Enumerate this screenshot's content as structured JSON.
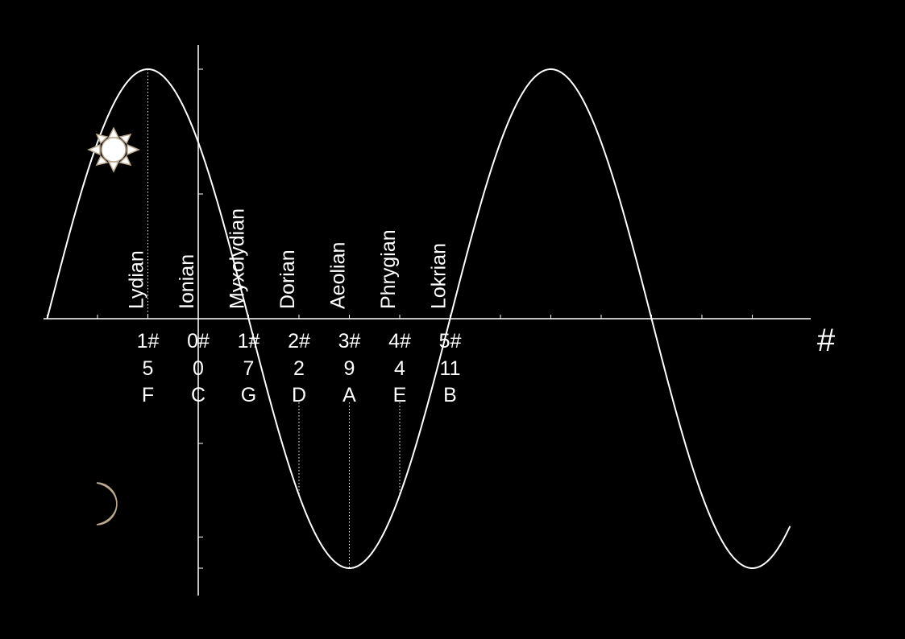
{
  "colors": {
    "background": "#000000",
    "foreground": "#ffffff",
    "sun_fill": "#ffffff",
    "icon_edge": "#bba890"
  },
  "icons": {
    "day": "sun-icon",
    "night": "crescent-moon-icon"
  },
  "axis": {
    "x_label": "#"
  },
  "curve": {
    "type": "sine",
    "amplitude": 1,
    "period_units": 8,
    "peak_at": -1,
    "x_range": [
      -3,
      11.75
    ],
    "y_range": [
      -1,
      1
    ]
  },
  "modes": [
    {
      "name": "Lydian",
      "sharps": "1#",
      "semitones": "5",
      "note": "F",
      "x": -1
    },
    {
      "name": "Ionian",
      "sharps": "0#",
      "semitones": "0",
      "note": "C",
      "x": 0
    },
    {
      "name": "Myxolydian",
      "sharps": "1#",
      "semitones": "7",
      "note": "G",
      "x": 1
    },
    {
      "name": "Dorian",
      "sharps": "2#",
      "semitones": "2",
      "note": "D",
      "x": 2
    },
    {
      "name": "Aeolian",
      "sharps": "3#",
      "semitones": "9",
      "note": "A",
      "x": 3
    },
    {
      "name": "Phrygian",
      "sharps": "4#",
      "semitones": "4",
      "note": "E",
      "x": 4
    },
    {
      "name": "Lokrian",
      "sharps": "5#",
      "semitones": "11",
      "note": "B",
      "x": 5
    }
  ]
}
